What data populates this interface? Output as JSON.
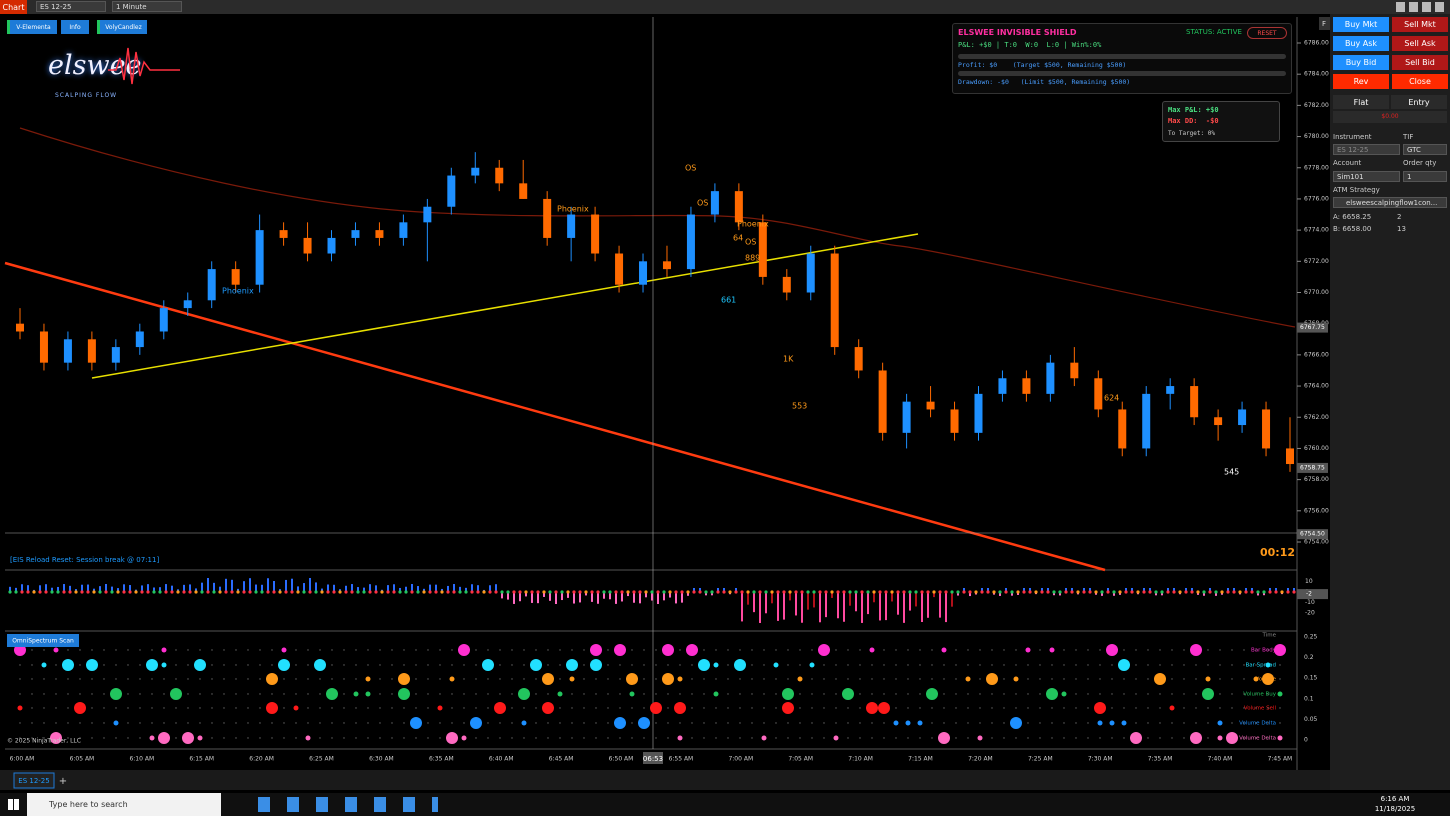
{
  "toolbar": {
    "tab": "Chart",
    "instrument": "ES 12-25",
    "interval": "1 Minute"
  },
  "indicators": [
    "V-Elementa",
    "Info",
    "VolyCandlez"
  ],
  "logo": {
    "name": "elswee",
    "tagline": "SCALPING FLOW"
  },
  "shield": {
    "title": "ELSWEE INVISIBLE SHIELD",
    "status": "STATUS: ACTIVE",
    "reset": "RESET",
    "pnl": "P&L: +$0 | T:0  W:0  L:0 | Win%:0%",
    "profit": "Profit: $0    (Target $500, Remaining $500)",
    "drawdown": "Drawdown: -$0   (Limit $500, Remaining $500)"
  },
  "stats": {
    "max_pnl": "Max P&L: +$0",
    "max_dd": "Max DD:  -$0",
    "to_target": "To Target: 0%"
  },
  "chart": {
    "f_button": "F",
    "price_ticks": [
      {
        "value": 6786,
        "label": "6786.00"
      },
      {
        "value": 6784,
        "label": "6784.00"
      },
      {
        "value": 6782,
        "label": "6782.00"
      },
      {
        "value": 6780,
        "label": "6780.00"
      },
      {
        "value": 6778,
        "label": "6778.00"
      },
      {
        "value": 6776,
        "label": "6776.00"
      },
      {
        "value": 6774,
        "label": "6774.00"
      },
      {
        "value": 6772,
        "label": "6772.00"
      },
      {
        "value": 6770,
        "label": "6770.00"
      },
      {
        "value": 6768,
        "label": "6768.00"
      },
      {
        "value": 6766,
        "label": "6766.00"
      },
      {
        "value": 6764,
        "label": "6764.00"
      },
      {
        "value": 6762,
        "label": "6762.00"
      },
      {
        "value": 6760,
        "label": "6760.00"
      },
      {
        "value": 6758,
        "label": "6758.00"
      },
      {
        "value": 6756,
        "label": "6756.00"
      },
      {
        "value": 6754,
        "label": "6754.00"
      }
    ],
    "price_markers": [
      6767.75,
      6758.75,
      {
        "value": 6754.5,
        "label": "6754.50"
      }
    ],
    "time_ticks": [
      "6:00 AM",
      "6:05 AM",
      "6:10 AM",
      "6:15 AM",
      "6:20 AM",
      "6:25 AM",
      "6:30 AM",
      "6:35 AM",
      "6:40 AM",
      "6:45 AM",
      "6:50 AM",
      "6:55 AM",
      "7:00 AM",
      "7:05 AM",
      "7:10 AM",
      "7:15 AM",
      "7:20 AM",
      "7:25 AM",
      "7:30 AM",
      "7:35 AM",
      "7:40 AM",
      "7:45 AM"
    ],
    "cursor_time": "06:53",
    "candles": [
      [
        6768,
        6769,
        6767,
        6767.5
      ],
      [
        6767.5,
        6768,
        6765,
        6765.5
      ],
      [
        6765.5,
        6767.5,
        6765,
        6767
      ],
      [
        6767,
        6767.5,
        6765,
        6765.5
      ],
      [
        6765.5,
        6767,
        6765,
        6766.5
      ],
      [
        6766.5,
        6768,
        6766,
        6767.5
      ],
      [
        6767.5,
        6769.5,
        6767,
        6769
      ],
      [
        6769,
        6770,
        6768.5,
        6769.5
      ],
      [
        6769.5,
        6772,
        6769,
        6771.5
      ],
      [
        6771.5,
        6772,
        6770,
        6770.5
      ],
      [
        6770.5,
        6775,
        6770,
        6774
      ],
      [
        6774,
        6774.5,
        6773,
        6773.5
      ],
      [
        6773.5,
        6774.5,
        6772,
        6772.5
      ],
      [
        6772.5,
        6774,
        6772,
        6773.5
      ],
      [
        6773.5,
        6774.5,
        6773,
        6774
      ],
      [
        6774,
        6774.5,
        6773,
        6773.5
      ],
      [
        6773.5,
        6775,
        6773,
        6774.5
      ],
      [
        6774.5,
        6776,
        6772,
        6775.5
      ],
      [
        6775.5,
        6778,
        6775,
        6777.5
      ],
      [
        6777.5,
        6779,
        6777,
        6778
      ],
      [
        6778,
        6778.5,
        6776.5,
        6777
      ],
      [
        6777,
        6778.5,
        6776,
        6776
      ],
      [
        6776,
        6776.5,
        6773,
        6773.5
      ],
      [
        6773.5,
        6775.5,
        6772,
        6775
      ],
      [
        6775,
        6775.5,
        6772,
        6772.5
      ],
      [
        6772.5,
        6773,
        6770,
        6770.5
      ],
      [
        6770.5,
        6772.5,
        6770,
        6772
      ],
      [
        6772,
        6773,
        6771,
        6771.5
      ],
      [
        6771.5,
        6775.5,
        6771,
        6775
      ],
      [
        6775,
        6777,
        6774.5,
        6776.5
      ],
      [
        6776.5,
        6777,
        6774,
        6774.5
      ],
      [
        6774.5,
        6775,
        6770.5,
        6771
      ],
      [
        6771,
        6771.5,
        6769.5,
        6770
      ],
      [
        6770,
        6773,
        6769.5,
        6772.5
      ],
      [
        6772.5,
        6773,
        6766,
        6766.5
      ],
      [
        6766.5,
        6767,
        6764.5,
        6765
      ],
      [
        6765,
        6765.5,
        6760.5,
        6761
      ],
      [
        6761,
        6763.5,
        6760,
        6763
      ],
      [
        6763,
        6764,
        6762,
        6762.5
      ],
      [
        6762.5,
        6763,
        6760.5,
        6761
      ],
      [
        6761,
        6764,
        6760.5,
        6763.5
      ],
      [
        6763.5,
        6765,
        6763,
        6764.5
      ],
      [
        6764.5,
        6765,
        6763,
        6763.5
      ],
      [
        6763.5,
        6766,
        6763,
        6765.5
      ],
      [
        6765.5,
        6766.5,
        6764,
        6764.5
      ],
      [
        6764.5,
        6765,
        6762,
        6762.5
      ],
      [
        6762.5,
        6763,
        6759.5,
        6760
      ],
      [
        6760,
        6764,
        6759.5,
        6763.5
      ],
      [
        6763.5,
        6764.5,
        6762.5,
        6764
      ],
      [
        6764,
        6764.5,
        6761.5,
        6762
      ],
      [
        6762,
        6762.5,
        6760.5,
        6761.5
      ],
      [
        6761.5,
        6763,
        6761,
        6762.5
      ],
      [
        6762.5,
        6763,
        6759.5,
        6760
      ],
      [
        6760,
        6762,
        6758.5,
        6759
      ]
    ],
    "annotations": [
      "Phoenix",
      "Phoenix",
      "Phoenix",
      "OS",
      "OS",
      "OS",
      64,
      889,
      661,
      {
        "value": 1000,
        "label": "1K"
      },
      553,
      624,
      545
    ],
    "status_text": "[EIS Reload Reset: Session break @ 07:11]",
    "timer": "00:12",
    "indicator_ticks": [
      10,
      0,
      -10,
      -20
    ],
    "indicator_value": -2,
    "scan": {
      "title": "OmniSpectrum Scan",
      "rows": [
        "Time",
        "Bar Body",
        "Bar Spread",
        "Volume",
        "Volume Buy",
        "Volume Sell",
        "Volume Delta",
        "Volume Delta"
      ],
      "ticks": [
        0.25,
        0.2,
        0.15,
        0.1,
        0.05,
        0
      ]
    },
    "copyright": "© 2025 NinjaTrader, LLC"
  },
  "order_entry": {
    "buttons": [
      "Buy Mkt",
      "Sell Mkt",
      "Buy Ask",
      "Sell Ask",
      "Buy Bid",
      "Sell Bid",
      "Rev",
      "Close"
    ],
    "flat": "Flat",
    "entry": "Entry",
    "pnl": "$0.00",
    "instrument_label": "Instrument",
    "tif_label": "TIF",
    "instrument": "ES 12-25",
    "tif": "GTC",
    "account_label": "Account",
    "qty_label": "Order qty",
    "account": "Sim101",
    "qty": 1,
    "atm_label": "ATM Strategy",
    "atm": "elsweescalpingflow1con...",
    "ask": "A: 6658.25",
    "ask_size": 2,
    "bid": "B: 6658.00",
    "bid_size": 13
  },
  "tab": {
    "name": "ES 12-25",
    "add": "+"
  },
  "taskbar": {
    "search": "Type here to search",
    "time": "6:16 AM",
    "date": "11/18/2025"
  }
}
